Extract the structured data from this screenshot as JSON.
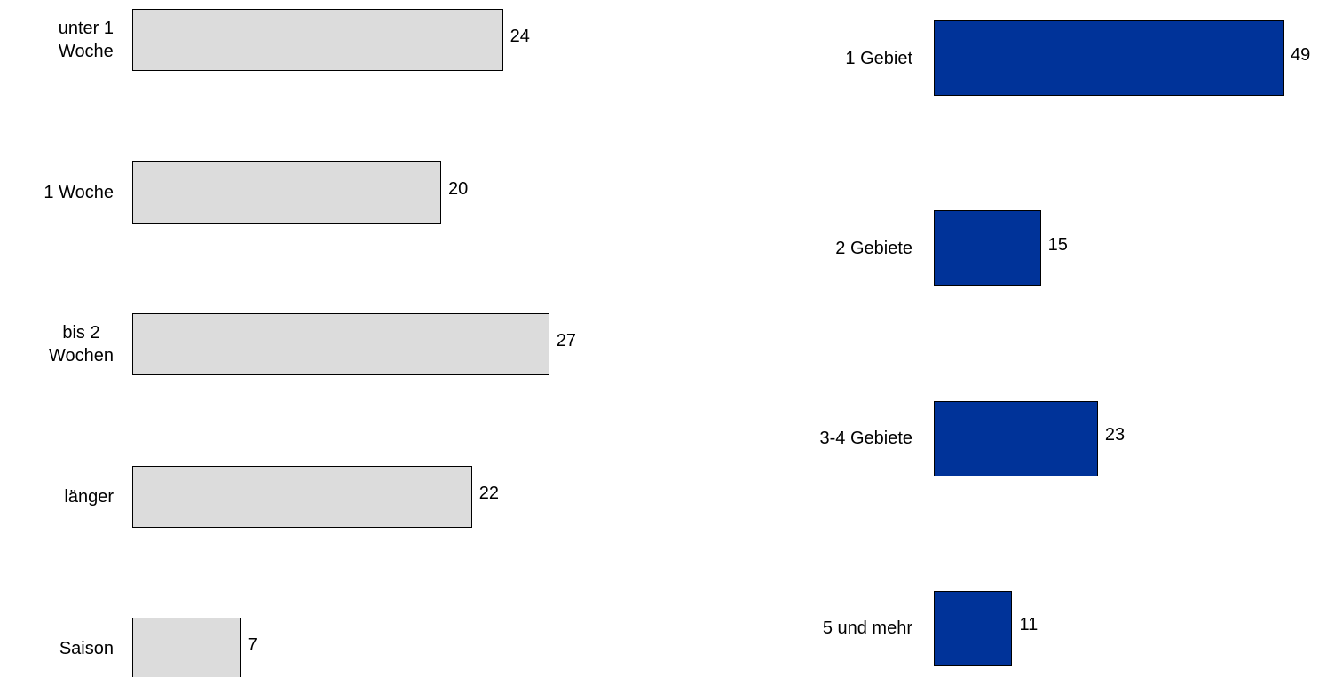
{
  "chart_data": [
    {
      "type": "hbar",
      "categories": [
        "unter 1\nWoche",
        "1 Woche",
        "bis 2\nWochen",
        "länger",
        "Saison"
      ],
      "values": [
        24,
        20,
        27,
        22,
        7
      ],
      "color": "#dcdcdc",
      "xlim": [
        0,
        40
      ]
    },
    {
      "type": "hbar",
      "categories": [
        "1 Gebiet",
        "2 Gebiete",
        "3-4 Gebiete",
        "5 und mehr"
      ],
      "values": [
        49,
        15,
        23,
        11
      ],
      "color": "#003399",
      "xlim": [
        0,
        50
      ]
    }
  ]
}
